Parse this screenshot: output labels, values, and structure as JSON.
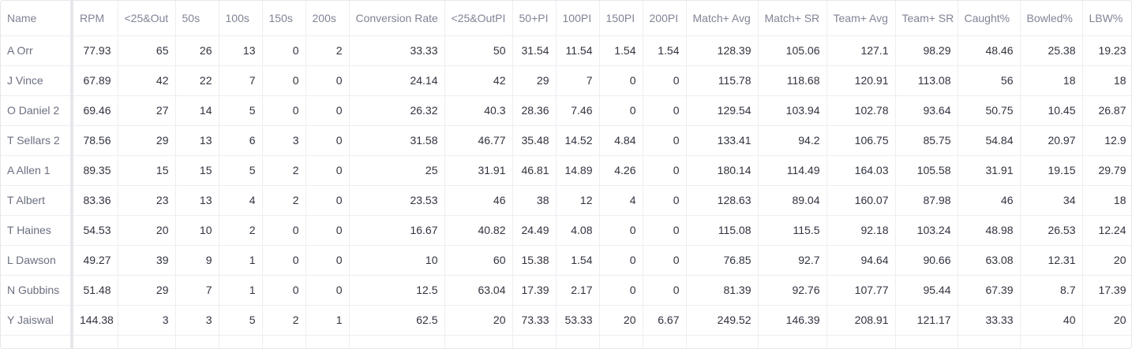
{
  "table": {
    "columns": [
      "Name",
      "RPM",
      "<25&Out",
      "50s",
      "100s",
      "150s",
      "200s",
      "Conversion Rate",
      "<25&OutPI",
      "50+PI",
      "100PI",
      "150PI",
      "200PI",
      "Match+ Avg",
      "Match+ SR",
      "Team+ Avg",
      "Team+ SR",
      "Caught%",
      "Bowled%",
      "LBW%"
    ],
    "rows": [
      [
        "A Orr",
        "77.93",
        "65",
        "26",
        "13",
        "0",
        "2",
        "33.33",
        "50",
        "31.54",
        "11.54",
        "1.54",
        "1.54",
        "128.39",
        "105.06",
        "127.1",
        "98.29",
        "48.46",
        "25.38",
        "19.23"
      ],
      [
        "J Vince",
        "67.89",
        "42",
        "22",
        "7",
        "0",
        "0",
        "24.14",
        "42",
        "29",
        "7",
        "0",
        "0",
        "115.78",
        "118.68",
        "120.91",
        "113.08",
        "56",
        "18",
        "18"
      ],
      [
        "O Daniel 2",
        "69.46",
        "27",
        "14",
        "5",
        "0",
        "0",
        "26.32",
        "40.3",
        "28.36",
        "7.46",
        "0",
        "0",
        "129.54",
        "103.94",
        "102.78",
        "93.64",
        "50.75",
        "10.45",
        "26.87"
      ],
      [
        "T Sellars 2",
        "78.56",
        "29",
        "13",
        "6",
        "3",
        "0",
        "31.58",
        "46.77",
        "35.48",
        "14.52",
        "4.84",
        "0",
        "133.41",
        "94.2",
        "106.75",
        "85.75",
        "54.84",
        "20.97",
        "12.9"
      ],
      [
        "A Allen 1",
        "89.35",
        "15",
        "15",
        "5",
        "2",
        "0",
        "25",
        "31.91",
        "46.81",
        "14.89",
        "4.26",
        "0",
        "180.14",
        "114.49",
        "164.03",
        "105.58",
        "31.91",
        "19.15",
        "29.79"
      ],
      [
        "T Albert",
        "83.36",
        "23",
        "13",
        "4",
        "2",
        "0",
        "23.53",
        "46",
        "38",
        "12",
        "4",
        "0",
        "128.63",
        "89.04",
        "160.07",
        "87.98",
        "46",
        "34",
        "18"
      ],
      [
        "T Haines",
        "54.53",
        "20",
        "10",
        "2",
        "0",
        "0",
        "16.67",
        "40.82",
        "24.49",
        "4.08",
        "0",
        "0",
        "115.08",
        "115.5",
        "92.18",
        "103.24",
        "48.98",
        "26.53",
        "12.24"
      ],
      [
        "L Dawson",
        "49.27",
        "39",
        "9",
        "1",
        "0",
        "0",
        "10",
        "60",
        "15.38",
        "1.54",
        "0",
        "0",
        "76.85",
        "92.7",
        "94.64",
        "90.66",
        "63.08",
        "12.31",
        "20"
      ],
      [
        "N Gubbins",
        "51.48",
        "29",
        "7",
        "1",
        "0",
        "0",
        "12.5",
        "63.04",
        "17.39",
        "2.17",
        "0",
        "0",
        "81.39",
        "92.76",
        "107.77",
        "95.44",
        "67.39",
        "8.7",
        "17.39"
      ],
      [
        "Y Jaiswal",
        "144.38",
        "3",
        "3",
        "5",
        "2",
        "1",
        "62.5",
        "20",
        "73.33",
        "53.33",
        "20",
        "6.67",
        "249.52",
        "146.39",
        "208.91",
        "121.17",
        "33.33",
        "40",
        "20"
      ]
    ]
  }
}
